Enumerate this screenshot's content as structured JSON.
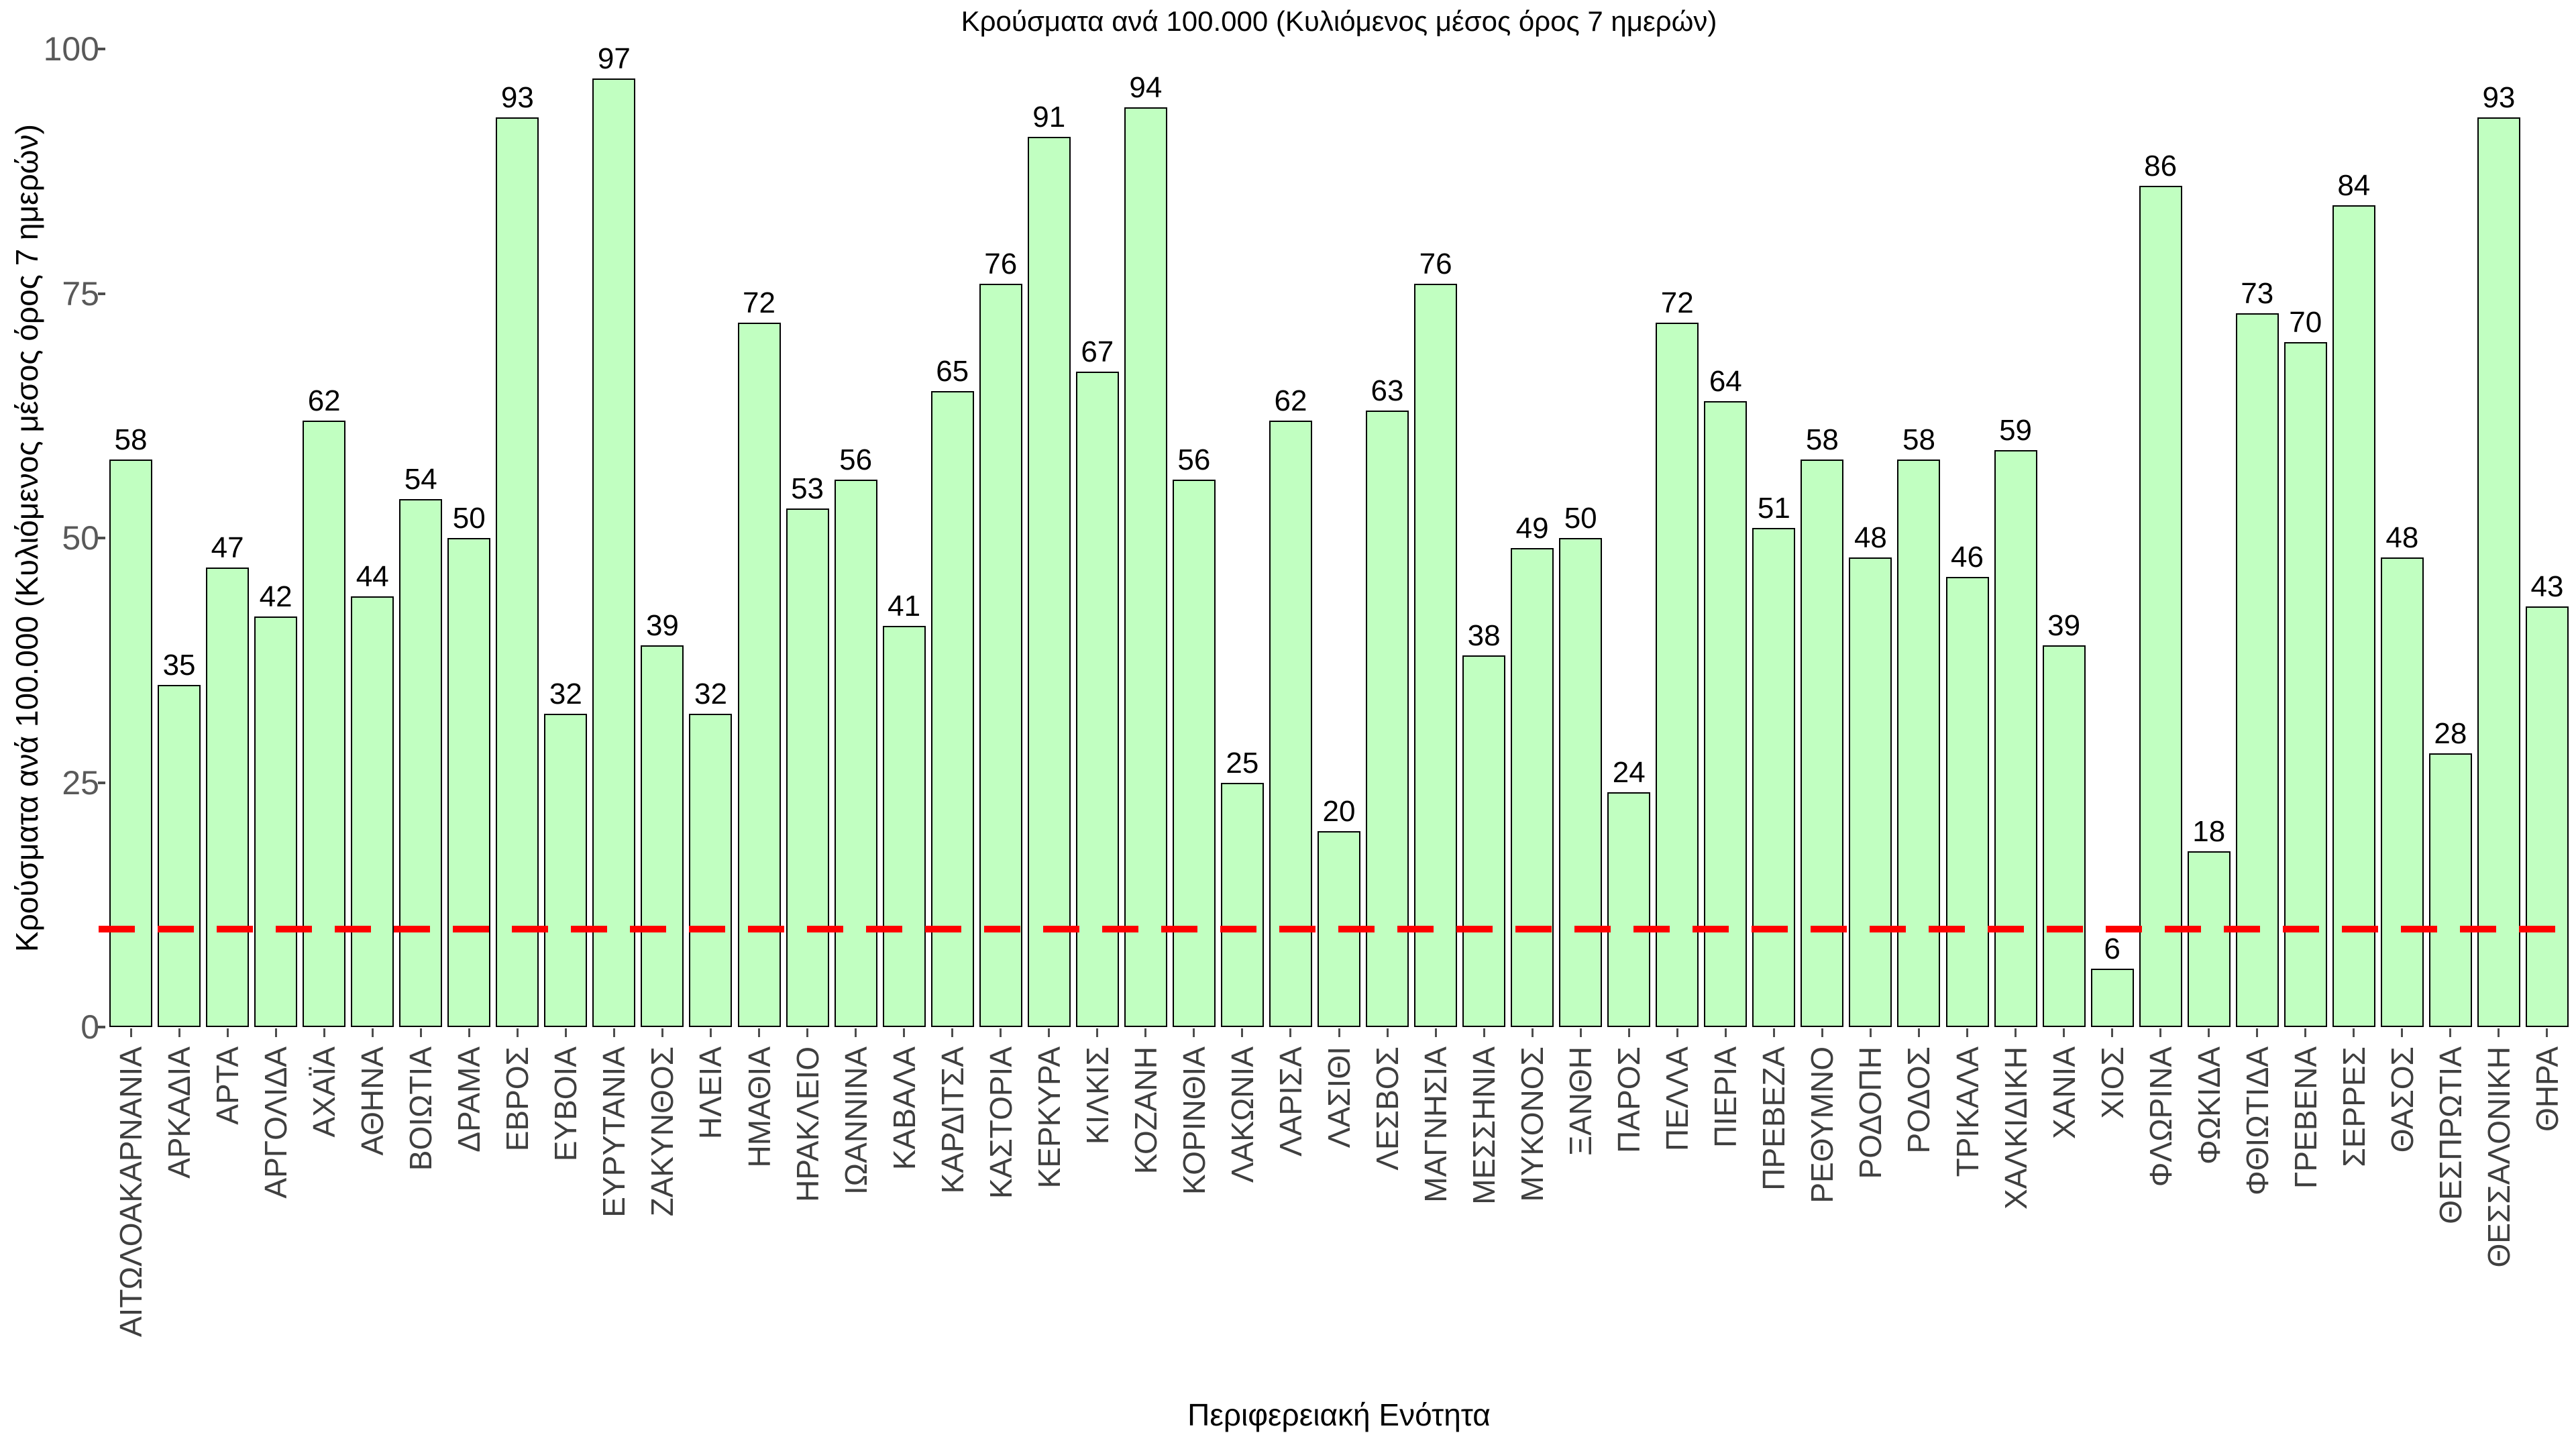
{
  "title": "Κρούσματα ανά 100.000 (Κυλιόμενος μέσος όρος 7 ημερών)",
  "colors": {
    "background": "#ffffff",
    "bar_fill": "#c1ffc1",
    "bar_border": "#000000",
    "value_label": "#000000",
    "y_tick_label": "#595959",
    "category_label": "#3f3f3f",
    "reference_line": "#fe0000"
  },
  "chart_data": {
    "type": "bar",
    "title": "Κρούσματα ανά 100.000 (Κυλιόμενος μέσος όρος 7 ημερών)",
    "xlabel": "Περιφερειακή Ενότητα",
    "ylabel": "Κρούσματα ανά 100.000 (Κυλιόμενος μέσος όρος 7 ημερών)",
    "ylim": [
      0,
      100
    ],
    "y_ticks": [
      0,
      25,
      50,
      75,
      100
    ],
    "grid": false,
    "legend": null,
    "bar_value_labels_shown": true,
    "reference_line": {
      "y": 10,
      "color": "#fe0000",
      "style": "dashed"
    },
    "categories": [
      "ΑΙΤΩΛΟΑΚΑΡΝΑΝΙΑ",
      "ΑΡΚΑΔΙΑ",
      "ΑΡΤΑ",
      "ΑΡΓΟΛΙΔΑ",
      "ΑΧΑΪΑ",
      "ΑΘΗΝΑ",
      "ΒΟΙΩΤΙΑ",
      "ΔΡΑΜΑ",
      "ΕΒΡΟΣ",
      "ΕΥΒΟΙΑ",
      "ΕΥΡΥΤΑΝΙΑ",
      "ΖΑΚΥΝΘΟΣ",
      "ΗΛΕΙΑ",
      "ΗΜΑΘΙΑ",
      "ΗΡΑΚΛΕΙΟ",
      "ΙΩΑΝΝΙΝΑ",
      "ΚΑΒΑΛΑ",
      "ΚΑΡΔΙΤΣΑ",
      "ΚΑΣΤΟΡΙΑ",
      "ΚΕΡΚΥΡΑ",
      "ΚΙΛΚΙΣ",
      "ΚΟΖΑΝΗ",
      "ΚΟΡΙΝΘΙΑ",
      "ΛΑΚΩΝΙΑ",
      "ΛΑΡΙΣΑ",
      "ΛΑΣΙΘΙ",
      "ΛΕΣΒΟΣ",
      "ΜΑΓΝΗΣΙΑ",
      "ΜΕΣΣΗΝΙΑ",
      "ΜΥΚΟΝΟΣ",
      "ΞΑΝΘΗ",
      "ΠΑΡΟΣ",
      "ΠΕΛΛΑ",
      "ΠΙΕΡΙΑ",
      "ΠΡΕΒΕΖΑ",
      "ΡΕΘΥΜΝΟ",
      "ΡΟΔΟΠΗ",
      "ΡΟΔΟΣ",
      "ΤΡΙΚΑΛΑ",
      "ΧΑΛΚΙΔΙΚΗ",
      "ΧΑΝΙΑ",
      "ΧΙΟΣ",
      "ΦΛΩΡΙΝΑ",
      "ΦΩΚΙΔΑ",
      "ΦΘΙΩΤΙΔΑ",
      "ΓΡΕΒΕΝΑ",
      "ΣΕΡΡΕΣ",
      "ΘΑΣΟΣ",
      "ΘΕΣΠΡΩΤΙΑ",
      "ΘΕΣΣΑΛΟΝΙΚΗ",
      "ΘΗΡΑ"
    ],
    "values": [
      58,
      35,
      47,
      42,
      62,
      44,
      54,
      50,
      93,
      32,
      97,
      39,
      32,
      72,
      53,
      56,
      41,
      65,
      76,
      91,
      67,
      94,
      56,
      25,
      62,
      20,
      63,
      76,
      38,
      49,
      50,
      24,
      72,
      64,
      51,
      58,
      48,
      58,
      46,
      59,
      39,
      6,
      86,
      18,
      73,
      70,
      84,
      48,
      28,
      93,
      43
    ]
  }
}
